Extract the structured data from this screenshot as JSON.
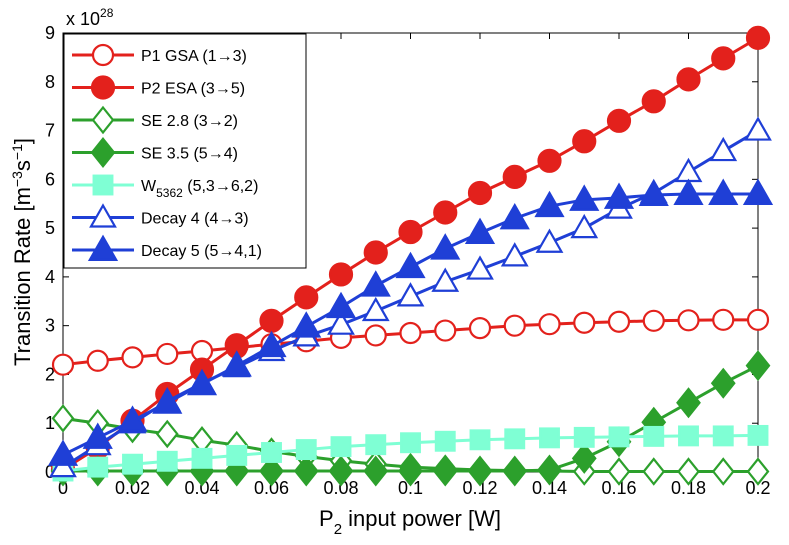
{
  "chart_data": {
    "type": "line",
    "title": "",
    "xlabel": {
      "base": "P",
      "sub": "2",
      "rest": " input power [W]"
    },
    "ylabel": {
      "base": "Transition Rate [m",
      "sup1": "−3",
      "mid": "s",
      "sup2": "−1",
      "end": "]"
    },
    "y_exponent": {
      "prefix": "x 10",
      "power": "28"
    },
    "xlim": [
      0,
      0.2
    ],
    "ylim": [
      0,
      9
    ],
    "x_ticks": [
      0,
      0.02,
      0.04,
      0.06,
      0.08,
      0.1,
      0.12,
      0.14,
      0.16,
      0.18,
      0.2
    ],
    "x_tick_labels": [
      "0",
      "0.02",
      "0.04",
      "0.06",
      "0.08",
      "0.1",
      "0.12",
      "0.14",
      "0.16",
      "0.18",
      "0.2"
    ],
    "y_ticks": [
      0,
      1,
      2,
      3,
      4,
      5,
      6,
      7,
      8,
      9
    ],
    "y_tick_labels": [
      "0",
      "1",
      "2",
      "3",
      "4",
      "5",
      "6",
      "7",
      "8",
      "9"
    ],
    "grid": false,
    "legend_position": "top-left",
    "x": [
      0,
      0.01,
      0.02,
      0.03,
      0.04,
      0.05,
      0.06,
      0.07,
      0.08,
      0.09,
      0.1,
      0.11,
      0.12,
      0.13,
      0.14,
      0.15,
      0.16,
      0.17,
      0.18,
      0.19,
      0.2
    ],
    "series": [
      {
        "name": "P1 GSA (1→3)",
        "sub": "",
        "rest": "",
        "color": "#e3211c",
        "marker": "circle",
        "filled": false,
        "values": [
          2.2,
          2.28,
          2.35,
          2.42,
          2.48,
          2.55,
          2.62,
          2.68,
          2.75,
          2.8,
          2.85,
          2.9,
          2.95,
          3.0,
          3.03,
          3.06,
          3.08,
          3.1,
          3.11,
          3.12,
          3.12
        ]
      },
      {
        "name": "P2 ESA (3→5)",
        "sub": "",
        "rest": "",
        "color": "#e3211c",
        "marker": "circle",
        "filled": true,
        "values": [
          0.05,
          0.5,
          1.05,
          1.6,
          2.1,
          2.6,
          3.1,
          3.58,
          4.05,
          4.5,
          4.92,
          5.32,
          5.72,
          6.05,
          6.38,
          6.78,
          7.2,
          7.6,
          8.05,
          8.48,
          8.9
        ]
      },
      {
        "name": "SE 2.8 (3→2)",
        "sub": "",
        "rest": "",
        "color": "#2ca02c",
        "marker": "diamond",
        "filled": false,
        "values": [
          1.1,
          1.0,
          0.88,
          0.78,
          0.65,
          0.55,
          0.42,
          0.32,
          0.23,
          0.16,
          0.1,
          0.07,
          0.04,
          0.03,
          0.02,
          0.01,
          0.01,
          0.01,
          0.01,
          0.01,
          0.01
        ]
      },
      {
        "name": "SE 3.5 (5→4)",
        "sub": "",
        "rest": "",
        "color": "#2ca02c",
        "marker": "diamond",
        "filled": true,
        "values": [
          0.02,
          0.02,
          0.02,
          0.02,
          0.02,
          0.02,
          0.02,
          0.02,
          0.02,
          0.02,
          0.02,
          0.02,
          0.02,
          0.02,
          0.04,
          0.28,
          0.62,
          1.02,
          1.42,
          1.82,
          2.18
        ]
      },
      {
        "name": "W",
        "sub": "5362",
        "rest": " (5,3→6,2)",
        "color": "#7fffd4",
        "marker": "square",
        "filled": true,
        "values": [
          0.02,
          0.1,
          0.16,
          0.22,
          0.28,
          0.34,
          0.4,
          0.46,
          0.52,
          0.56,
          0.6,
          0.63,
          0.66,
          0.68,
          0.7,
          0.71,
          0.72,
          0.73,
          0.74,
          0.74,
          0.75
        ]
      },
      {
        "name": "Decay 4 (4→3)",
        "sub": "",
        "rest": "",
        "color": "#1f3fd6",
        "marker": "triangle",
        "filled": false,
        "values": [
          0.1,
          0.55,
          1.0,
          1.45,
          1.82,
          2.15,
          2.48,
          2.78,
          3.02,
          3.3,
          3.6,
          3.9,
          4.15,
          4.42,
          4.7,
          5.0,
          5.4,
          5.72,
          6.15,
          6.58,
          7.0
        ]
      },
      {
        "name": "Decay 5 (5→4,1)",
        "sub": "",
        "rest": "",
        "color": "#1f3fd6",
        "marker": "triangle",
        "filled": true,
        "values": [
          0.35,
          0.7,
          1.05,
          1.42,
          1.8,
          2.18,
          2.58,
          2.98,
          3.38,
          3.82,
          4.2,
          4.58,
          4.9,
          5.2,
          5.45,
          5.58,
          5.62,
          5.68,
          5.7,
          5.7,
          5.7
        ]
      }
    ]
  }
}
